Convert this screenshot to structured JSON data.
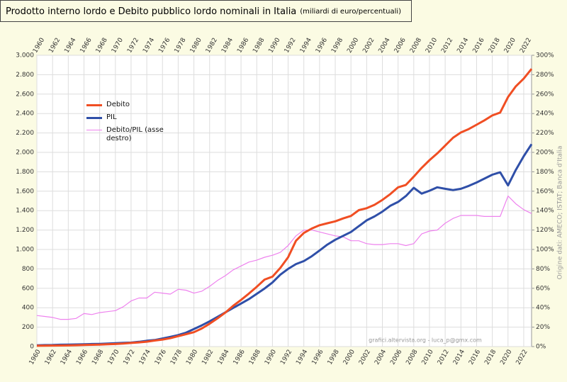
{
  "chart_data": {
    "type": "line",
    "title": "Prodotto interno lordo e Debito pubblico lordo nominali in Italia",
    "subtitle": "(miliardi di euro/percentuali)",
    "source": "Origine dati: AMECO; ISTAT; Banca d'Italia",
    "credit": "grafici.altervista.org - luca_p@gmx.com",
    "x": [
      1960,
      1961,
      1962,
      1963,
      1964,
      1965,
      1966,
      1967,
      1968,
      1969,
      1970,
      1971,
      1972,
      1973,
      1974,
      1975,
      1976,
      1977,
      1978,
      1979,
      1980,
      1981,
      1982,
      1983,
      1984,
      1985,
      1986,
      1987,
      1988,
      1989,
      1990,
      1991,
      1992,
      1993,
      1994,
      1995,
      1996,
      1997,
      1998,
      1999,
      2000,
      2001,
      2002,
      2003,
      2004,
      2005,
      2006,
      2007,
      2008,
      2009,
      2010,
      2011,
      2012,
      2013,
      2014,
      2015,
      2016,
      2017,
      2018,
      2019,
      2020,
      2021,
      2022,
      2023
    ],
    "xlim": [
      1960,
      2023
    ],
    "xticks": [
      1960,
      1962,
      1964,
      1966,
      1968,
      1970,
      1972,
      1974,
      1976,
      1978,
      1980,
      1982,
      1984,
      1986,
      1988,
      1990,
      1992,
      1994,
      1996,
      1998,
      2000,
      2002,
      2004,
      2006,
      2008,
      2010,
      2012,
      2014,
      2016,
      2018,
      2020,
      2022
    ],
    "ylim": [
      0,
      3000
    ],
    "yticks": [
      0,
      {
        "value": 200,
        "label": "200"
      },
      {
        "value": 400,
        "label": "400"
      },
      {
        "value": 600,
        "label": "600"
      },
      {
        "value": 800,
        "label": "800"
      },
      {
        "value": 1000,
        "label": "1.000"
      },
      {
        "value": 1200,
        "label": "1.200"
      },
      {
        "value": 1400,
        "label": "1.400"
      },
      {
        "value": 1600,
        "label": "1.600"
      },
      {
        "value": 1800,
        "label": "1.800"
      },
      {
        "value": 2000,
        "label": "2.000"
      },
      {
        "value": 2200,
        "label": "2.200"
      },
      {
        "value": 2400,
        "label": "2.400"
      },
      {
        "value": 2600,
        "label": "2.600"
      },
      {
        "value": 2800,
        "label": "2.800"
      },
      {
        "value": 3000,
        "label": "3.000"
      }
    ],
    "y2lim": [
      0,
      300
    ],
    "y2ticks": [
      {
        "value": 0,
        "label": "0%"
      },
      {
        "value": 20,
        "label": "20%"
      },
      {
        "value": 40,
        "label": "40%"
      },
      {
        "value": 60,
        "label": "60%"
      },
      {
        "value": 80,
        "label": "80%"
      },
      {
        "value": 100,
        "label": "100%"
      },
      {
        "value": 120,
        "label": "120%"
      },
      {
        "value": 140,
        "label": "140%"
      },
      {
        "value": 160,
        "label": "160%"
      },
      {
        "value": 180,
        "label": "180%"
      },
      {
        "value": 200,
        "label": "200%"
      },
      {
        "value": 220,
        "label": "220%"
      },
      {
        "value": 240,
        "label": "240%"
      },
      {
        "value": 260,
        "label": "260%"
      },
      {
        "value": 280,
        "label": "280%"
      },
      {
        "value": 300,
        "label": "300%"
      }
    ],
    "grid": true,
    "series": [
      {
        "name": "Debito",
        "color": "#f04e23",
        "width": 3,
        "values": [
          8,
          9,
          10,
          11,
          12,
          14,
          16,
          18,
          20,
          23,
          26,
          31,
          37,
          43,
          50,
          62,
          72,
          86,
          107,
          127,
          148,
          186,
          235,
          290,
          350,
          420,
          480,
          545,
          615,
          690,
          720,
          810,
          920,
          1090,
          1170,
          1215,
          1250,
          1270,
          1290,
          1320,
          1345,
          1405,
          1425,
          1460,
          1510,
          1570,
          1640,
          1665,
          1750,
          1840,
          1920,
          1990,
          2070,
          2150,
          2205,
          2240,
          2285,
          2330,
          2380,
          2410,
          2570,
          2680,
          2760,
          2860
        ]
      },
      {
        "name": "PIL",
        "color": "#2f4fa8",
        "width": 3,
        "values": [
          13,
          15,
          16,
          19,
          20,
          22,
          24,
          26,
          28,
          31,
          35,
          38,
          41,
          49,
          60,
          67,
          83,
          100,
          118,
          143,
          180,
          218,
          260,
          305,
          352,
          398,
          443,
          488,
          543,
          598,
          660,
          740,
          800,
          850,
          880,
          930,
          990,
          1050,
          1100,
          1140,
          1180,
          1240,
          1300,
          1340,
          1390,
          1450,
          1490,
          1550,
          1635,
          1575,
          1605,
          1640,
          1625,
          1612,
          1625,
          1655,
          1690,
          1730,
          1770,
          1795,
          1660,
          1820,
          1960,
          2085
        ]
      },
      {
        "name": "Debito/PIL (asse destro)",
        "color": "#ee82ee",
        "width": 1.2,
        "axis": "y2",
        "values": [
          32,
          31,
          30,
          28,
          28,
          29,
          34,
          33,
          35,
          36,
          37,
          41,
          47,
          50,
          50,
          56,
          55,
          54,
          59,
          58,
          55,
          57,
          62,
          68,
          73,
          79,
          83,
          87,
          89,
          92,
          94,
          97,
          104,
          114,
          120,
          120,
          118,
          116,
          114,
          113,
          109,
          109,
          106,
          105,
          105,
          106,
          106,
          104,
          106,
          116,
          119,
          120,
          127,
          132,
          135,
          135,
          135,
          134,
          134,
          134,
          155,
          147,
          141,
          137
        ]
      }
    ]
  }
}
